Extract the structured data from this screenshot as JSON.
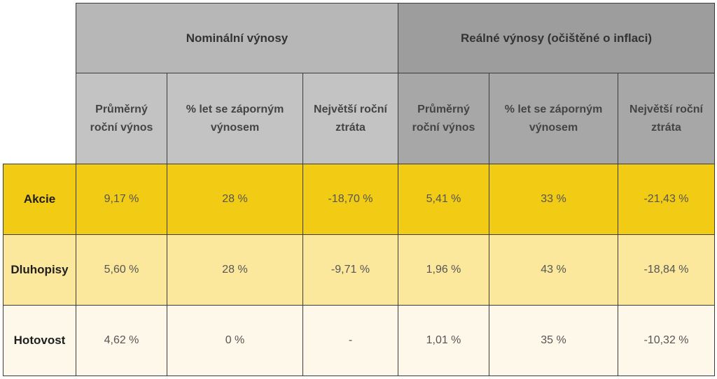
{
  "groups": {
    "nominal": "Nominální výnosy",
    "real": "Reálné výnosy (očištěné o inflaci)"
  },
  "columns": {
    "nominal": {
      "avg": [
        "Průměrný",
        "roční výnos"
      ],
      "neg": [
        "% let se záporným",
        "výnosem"
      ],
      "loss": [
        "Největší roční",
        "ztráta"
      ]
    },
    "real": {
      "avg": [
        "Průměrný",
        "roční výnos"
      ],
      "neg": [
        "% let se záporným",
        "výnosem"
      ],
      "loss": [
        "Největší roční",
        "ztráta"
      ]
    }
  },
  "rows": [
    {
      "label": "Akcie",
      "values": [
        "9,17 %",
        "28 %",
        "-18,70 %",
        "5,41 %",
        "33 %",
        "-21,43 %"
      ]
    },
    {
      "label": "Dluhopisy",
      "values": [
        "5,60 %",
        "28 %",
        "-9,71 %",
        "1,96 %",
        "43 %",
        "-18,84 %"
      ]
    },
    {
      "label": "Hotovost",
      "values": [
        "4,62 %",
        "0 %",
        "-",
        "1,01 %",
        "35 %",
        "-10,32 %"
      ]
    }
  ],
  "colors": {
    "akcie_row": "#f2cb15",
    "dluhopisy_row": "#fbe89c",
    "hotovost_row": "#fdf8e9",
    "nominal_header": "#b7b7b7",
    "real_header": "#9d9d9d"
  }
}
